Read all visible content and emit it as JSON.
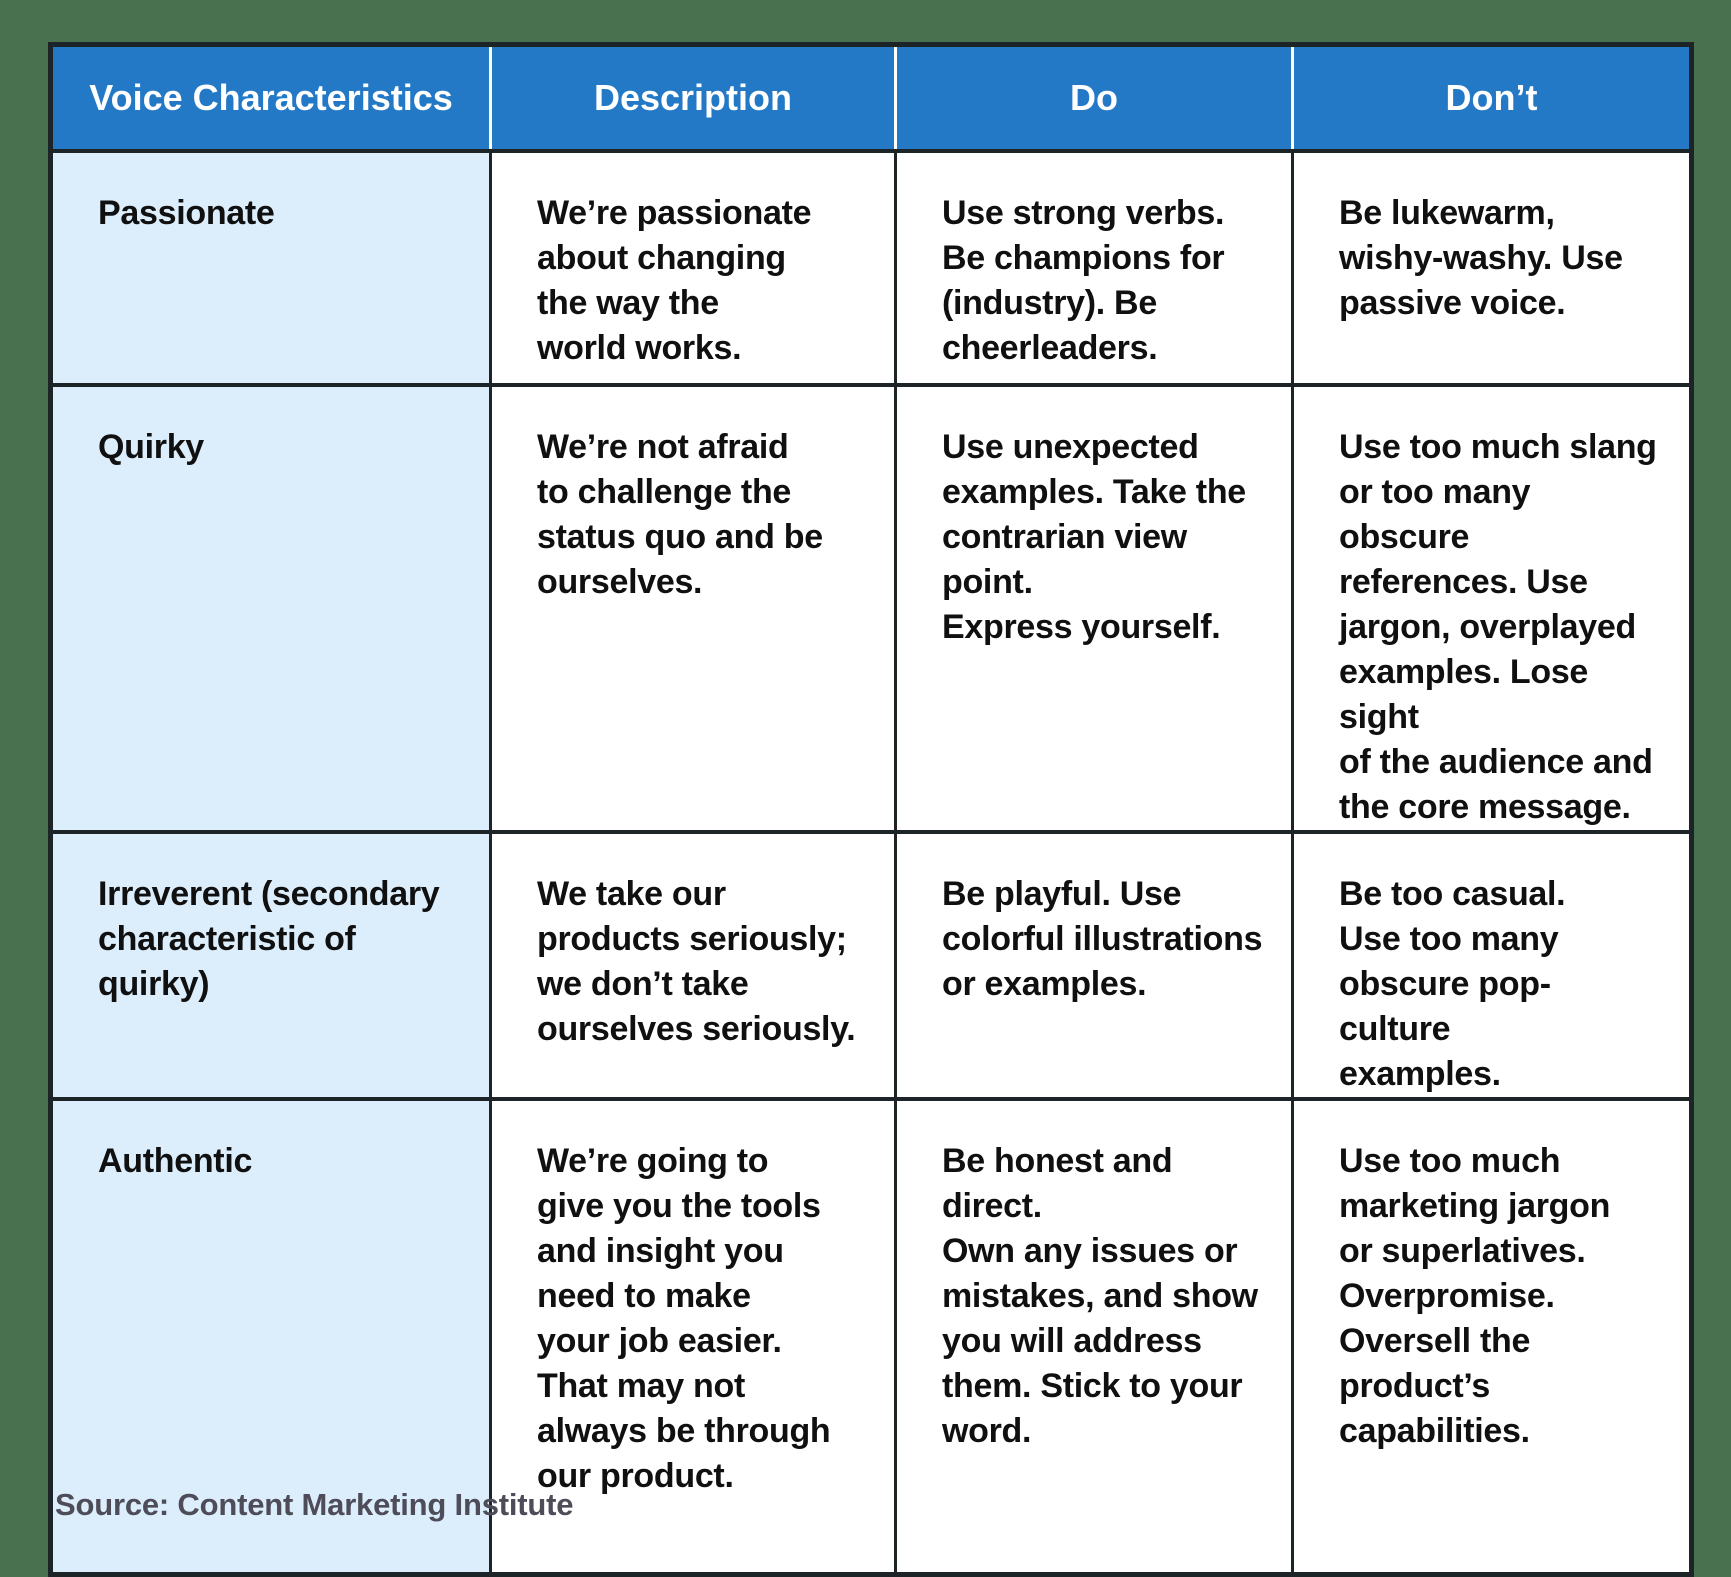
{
  "table": {
    "headers": [
      "Voice Characteristics",
      "Description",
      "Do",
      "Don’t"
    ],
    "rows": [
      {
        "characteristic": "Passionate",
        "description": "We’re passionate\nabout changing\nthe way the\nworld works.",
        "do": "Use strong verbs.\nBe champions for\n(industry). Be\ncheerleaders.",
        "dont": "Be lukewarm,\nwishy-washy. Use\npassive voice."
      },
      {
        "characteristic": "Quirky",
        "description": "We’re not afraid\nto challenge the\nstatus quo and be\nourselves.",
        "do": "Use unexpected\nexamples. Take the\ncontrarian view point.\nExpress yourself.",
        "dont": "Use too much slang\nor too many obscure\nreferences. Use\njargon, overplayed\nexamples. Lose sight\nof the audience and\nthe core message."
      },
      {
        "characteristic": "Irreverent (secondary\ncharacteristic of\nquirky)",
        "description": "We take our\nproducts seriously;\nwe don’t take\nourselves seriously.",
        "do": "Be playful. Use\ncolorful illustrations\nor examples.",
        "dont": "Be too casual.\nUse too many\nobscure pop-culture\nexamples."
      },
      {
        "characteristic": "Authentic",
        "description": "We’re going to\ngive you the tools\nand insight you\nneed to make\nyour job easier.\nThat may not\nalways be through\nour product.",
        "do": "Be honest and direct.\nOwn any issues or\nmistakes, and show\nyou will address\nthem. Stick to your\nword.",
        "dont": "Use too much\nmarketing jargon\nor superlatives.\nOverpromise.\nOversell the\nproduct’s\ncapabilities."
      }
    ]
  },
  "footer": {
    "source": "Source: Content Marketing Institute"
  },
  "colors": {
    "background": "#49704f",
    "header_blue": "#2379c5",
    "characteristic_light_blue": "#dceefc",
    "border_dark": "#1d2428",
    "header_text": "#ffffff",
    "body_text": "#101010",
    "source_text": "#4e4c58"
  }
}
